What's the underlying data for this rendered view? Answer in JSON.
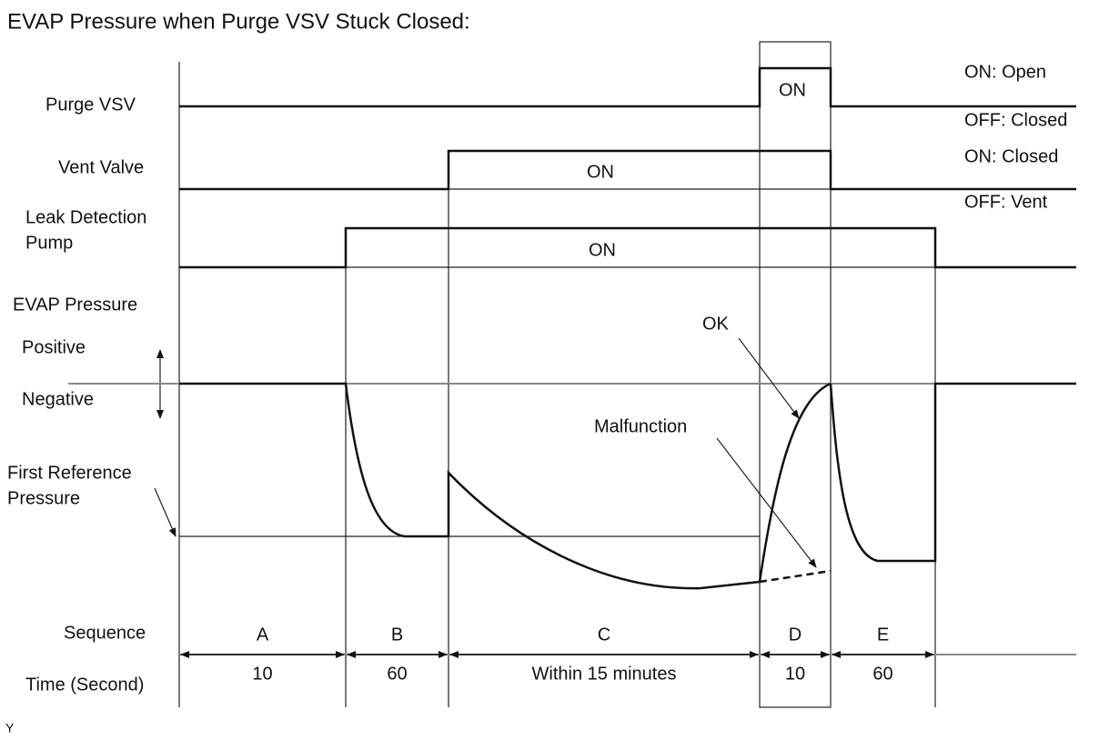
{
  "title": "EVAP Pressure when Purge VSV Stuck Closed:",
  "signals": [
    {
      "label": [
        "Purge VSV"
      ],
      "on": "ON",
      "states": [
        "ON: Open",
        "OFF: Closed"
      ]
    },
    {
      "label": [
        "Vent Valve"
      ],
      "on": "ON",
      "states": [
        "ON: Closed",
        "OFF: Vent"
      ]
    },
    {
      "label": [
        "Leak Detection",
        "Pump"
      ],
      "on": "ON"
    }
  ],
  "pressure": {
    "label": "EVAP Pressure",
    "positive": "Positive",
    "negative": "Negative",
    "reference": [
      "First Reference",
      "Pressure"
    ],
    "ok": "OK",
    "malfunction": "Malfunction"
  },
  "sequence": {
    "label": "Sequence",
    "time_label": "Time (Second)",
    "steps": [
      {
        "name": "A",
        "time": "10"
      },
      {
        "name": "B",
        "time": "60"
      },
      {
        "name": "C",
        "time": "Within 15 minutes"
      },
      {
        "name": "D",
        "time": "10"
      },
      {
        "name": "E",
        "time": "60"
      }
    ]
  },
  "footer": "Y"
}
